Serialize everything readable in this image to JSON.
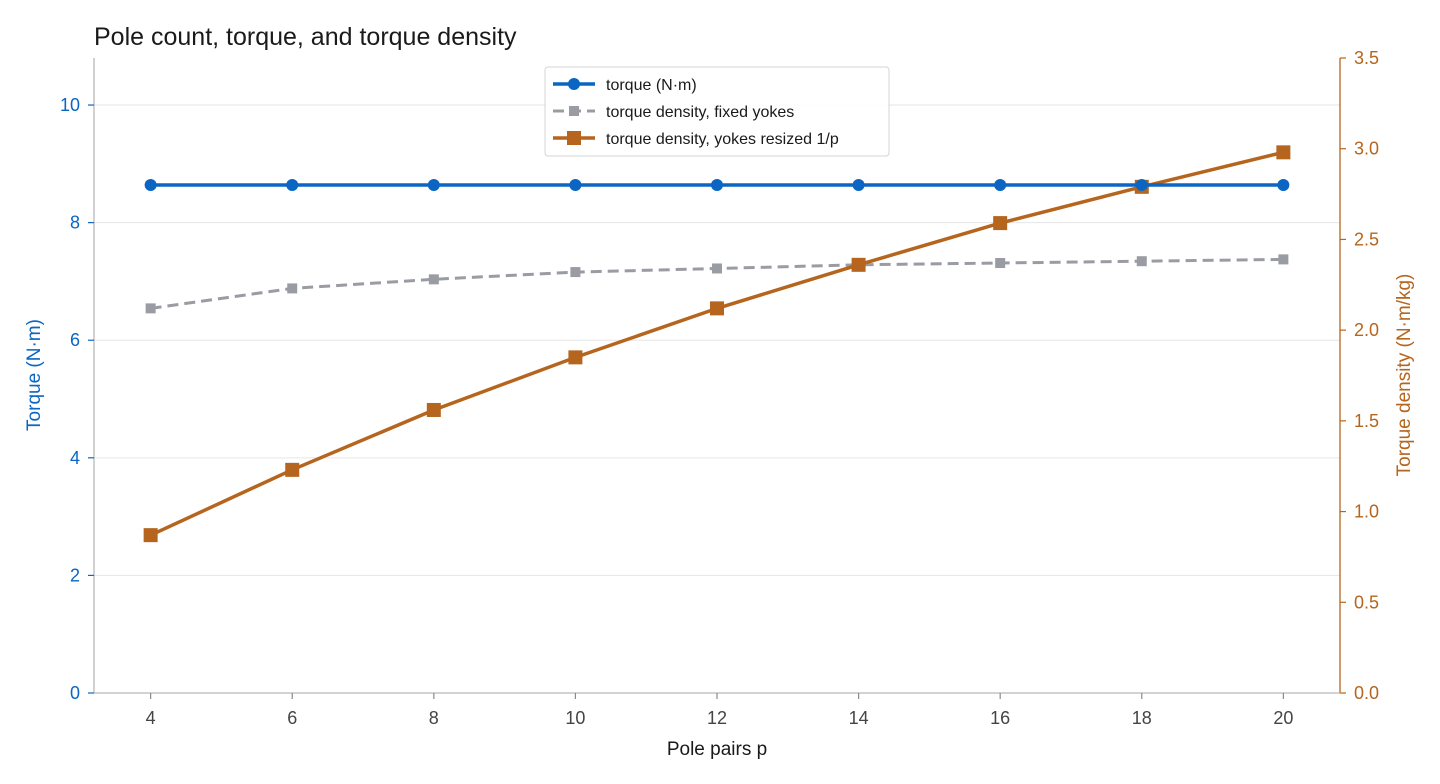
{
  "chart_data": {
    "type": "line",
    "title": "Pole count, torque, and torque density",
    "xlabel": "Pole pairs  p",
    "ylabel_left": "Torque (N·m)",
    "ylabel_right": "Torque density (N·m/kg)",
    "x": [
      4,
      6,
      8,
      10,
      12,
      14,
      16,
      18,
      20
    ],
    "x_ticks": [
      "4",
      "6",
      "8",
      "10",
      "12",
      "14",
      "16",
      "18",
      "20"
    ],
    "y_left_ticks": [
      "0",
      "2",
      "4",
      "6",
      "8",
      "10"
    ],
    "y_right_ticks": [
      "0.0",
      "0.5",
      "1.0",
      "1.5",
      "2.0",
      "2.5",
      "3.0",
      "3.5"
    ],
    "xlim": [
      3.2,
      20.8
    ],
    "ylim_left": [
      0,
      10.8
    ],
    "ylim_right": [
      0,
      3.5
    ],
    "grid": "horizontal",
    "legend_position": "top-center",
    "colors": {
      "left_axis": "#0a66c2",
      "right_axis": "#b5651d",
      "torque": "#0a66c2",
      "density_fixed": "#9a9ca3",
      "density_resized": "#b5651d"
    },
    "series": [
      {
        "name": "torque (N·m)",
        "axis": "left",
        "style": "solid",
        "marker": "circle",
        "values": [
          8.64,
          8.64,
          8.64,
          8.64,
          8.64,
          8.64,
          8.64,
          8.64,
          8.64
        ]
      },
      {
        "name": "torque density, fixed yokes",
        "axis": "right",
        "style": "dashed",
        "marker": "square",
        "values": [
          2.12,
          2.23,
          2.28,
          2.32,
          2.34,
          2.36,
          2.37,
          2.38,
          2.39
        ]
      },
      {
        "name": "torque density, yokes resized 1/p",
        "axis": "right",
        "style": "solid",
        "marker": "square",
        "values": [
          0.87,
          1.23,
          1.56,
          1.85,
          2.12,
          2.36,
          2.59,
          2.79,
          2.98
        ]
      }
    ]
  }
}
